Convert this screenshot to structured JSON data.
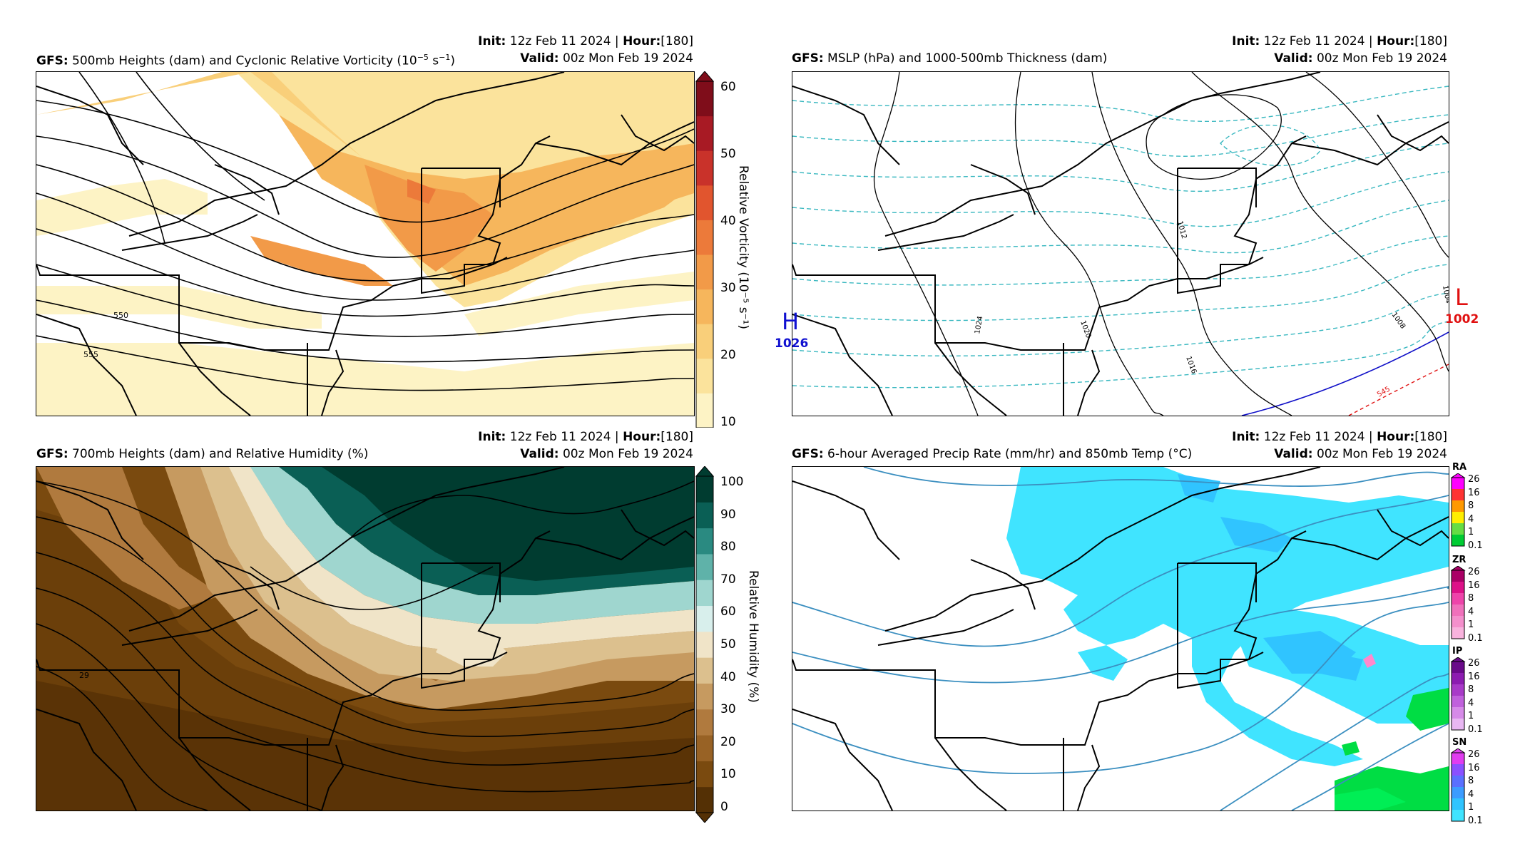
{
  "panels": {
    "p1": {
      "model": "GFS",
      "title": "500mb Heights (dam) and Cyclonic Relative Vorticity (10",
      "title_sup": "−5",
      "title_tail": " s",
      "title_sup2": "−1",
      "title_end": ")",
      "init_label": "Init",
      "init_value": "12z Feb 11 2024",
      "hour_label": "Hour",
      "hour_value": "[180]",
      "valid_label": "Valid",
      "valid_value": "00z Mon Feb 19 2024",
      "colorbar": {
        "label": "Relative Vorticity (10⁻⁵ s⁻¹)",
        "ticks": [
          "60",
          "50",
          "40",
          "30",
          "20",
          "10"
        ],
        "colors": [
          "#fdf3c5",
          "#fbe39c",
          "#f9cf7a",
          "#f6b65c",
          "#f29a48",
          "#ec7a3a",
          "#e1552e",
          "#c9322a",
          "#a81a24",
          "#7f0d1a"
        ]
      },
      "contour_labels": [
        "550",
        "555"
      ]
    },
    "p2": {
      "model": "GFS",
      "title": "MSLP (hPa) and 1000-500mb Thickness (dam)",
      "init_label": "Init",
      "init_value": "12z Feb 11 2024",
      "hour_label": "Hour",
      "hour_value": "[180]",
      "valid_label": "Valid",
      "valid_value": "00z Mon Feb 19 2024",
      "high": {
        "symbol": "H",
        "value": "1026",
        "color": "#1010d0"
      },
      "low": {
        "symbol": "L",
        "value": "1002",
        "color": "#e01010"
      },
      "isobar_labels": [
        "1024",
        "1020",
        "1016",
        "1012",
        "1008",
        "1004"
      ],
      "thickness_label": "545"
    },
    "p3": {
      "model": "GFS",
      "title": "700mb Heights (dam) and Relative Humidity (%)",
      "init_label": "Init",
      "init_value": "12z Feb 11 2024",
      "hour_label": "Hour",
      "hour_value": "[180]",
      "valid_label": "Valid",
      "valid_value": "00z Mon Feb 19 2024",
      "colorbar": {
        "label": "Relative Humidity (%)",
        "ticks": [
          "100",
          "90",
          "80",
          "70",
          "60",
          "50",
          "40",
          "30",
          "20",
          "10",
          "0"
        ],
        "colors": [
          "#543005",
          "#7a4a0f",
          "#986225",
          "#b07a3e",
          "#c69a60",
          "#dcc08e",
          "#f0e4c8",
          "#d8efec",
          "#9fd6cf",
          "#5fb2a9",
          "#2a8a81",
          "#0a5f55",
          "#003c30"
        ]
      }
    },
    "p4": {
      "model": "GFS",
      "title": "6-hour Averaged Precip Rate (mm/hr) and 850mb Temp (°C)",
      "init_label": "Init",
      "init_value": "12z Feb 11 2024",
      "hour_label": "Hour",
      "hour_value": "[180]",
      "valid_label": "Valid",
      "valid_value": "00z Mon Feb 19 2024",
      "ptypes": [
        {
          "name": "RA",
          "ticks": [
            "26",
            "16",
            "8",
            "4",
            "1",
            "0.1"
          ],
          "colors": [
            "#ff00ff",
            "#ff3333",
            "#ff9900",
            "#ffee00",
            "#66dd44",
            "#00cc33"
          ]
        },
        {
          "name": "ZR",
          "ticks": [
            "26",
            "16",
            "8",
            "4",
            "1",
            "0.1"
          ],
          "colors": [
            "#aa0066",
            "#dd1188",
            "#ee44aa",
            "#f070bb",
            "#f48fcc",
            "#f8b2dd"
          ]
        },
        {
          "name": "IP",
          "ticks": [
            "26",
            "16",
            "8",
            "4",
            "1",
            "0.1"
          ],
          "colors": [
            "#6a0a8a",
            "#8c1cb0",
            "#a83ac8",
            "#c060dc",
            "#d68ae8",
            "#e8b6f2"
          ]
        },
        {
          "name": "SN",
          "ticks": [
            "26",
            "16",
            "8",
            "4",
            "1",
            "0.1"
          ],
          "colors": [
            "#e03cf0",
            "#8a50ff",
            "#5a70ff",
            "#3c9cff",
            "#30c4ff",
            "#40e4ff"
          ]
        }
      ]
    }
  }
}
